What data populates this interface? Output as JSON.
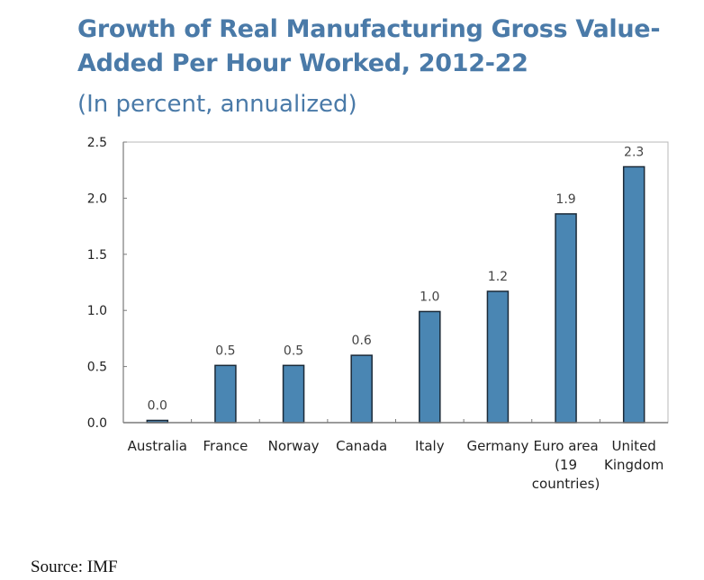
{
  "chart_data": {
    "type": "bar",
    "title": "Growth of Real Manufacturing Gross Value-Added Per Hour Worked, 2012-22",
    "title_lines": [
      "Growth of Real Manufacturing Gross Value-",
      "Added Per Hour Worked, 2012-22"
    ],
    "subtitle": "(In percent, annualized)",
    "xlabel": "",
    "ylabel": "",
    "categories": [
      "Australia",
      "France",
      "Norway",
      "Canada",
      "Italy",
      "Germany",
      "Euro area (19 countries)",
      "United Kingdom"
    ],
    "category_lines": [
      [
        "Australia"
      ],
      [
        "France"
      ],
      [
        "Norway"
      ],
      [
        "Canada"
      ],
      [
        "Italy"
      ],
      [
        "Germany"
      ],
      [
        "Euro area",
        "(19",
        "countries)"
      ],
      [
        "United",
        "Kingdom"
      ]
    ],
    "values": [
      0.02,
      0.51,
      0.51,
      0.6,
      0.99,
      1.17,
      1.86,
      2.28
    ],
    "data_labels": [
      "0.0",
      "0.5",
      "0.5",
      "0.6",
      "1.0",
      "1.2",
      "1.9",
      "2.3"
    ],
    "ylim": [
      0,
      2.5
    ],
    "yticks": [
      0.0,
      0.5,
      1.0,
      1.5,
      2.0,
      2.5
    ],
    "ytick_labels": [
      "0.0",
      "0.5",
      "1.0",
      "1.5",
      "2.0",
      "2.5"
    ],
    "grid": false,
    "legend": "none",
    "colors": {
      "bar_fill": "#4a86b3",
      "bar_stroke": "#1b2a38",
      "title": "#4a7aa8",
      "axis": "#7a7a7a",
      "text": "#222222",
      "label": "#444444"
    }
  },
  "footer": {
    "source": "Source: IMF"
  }
}
